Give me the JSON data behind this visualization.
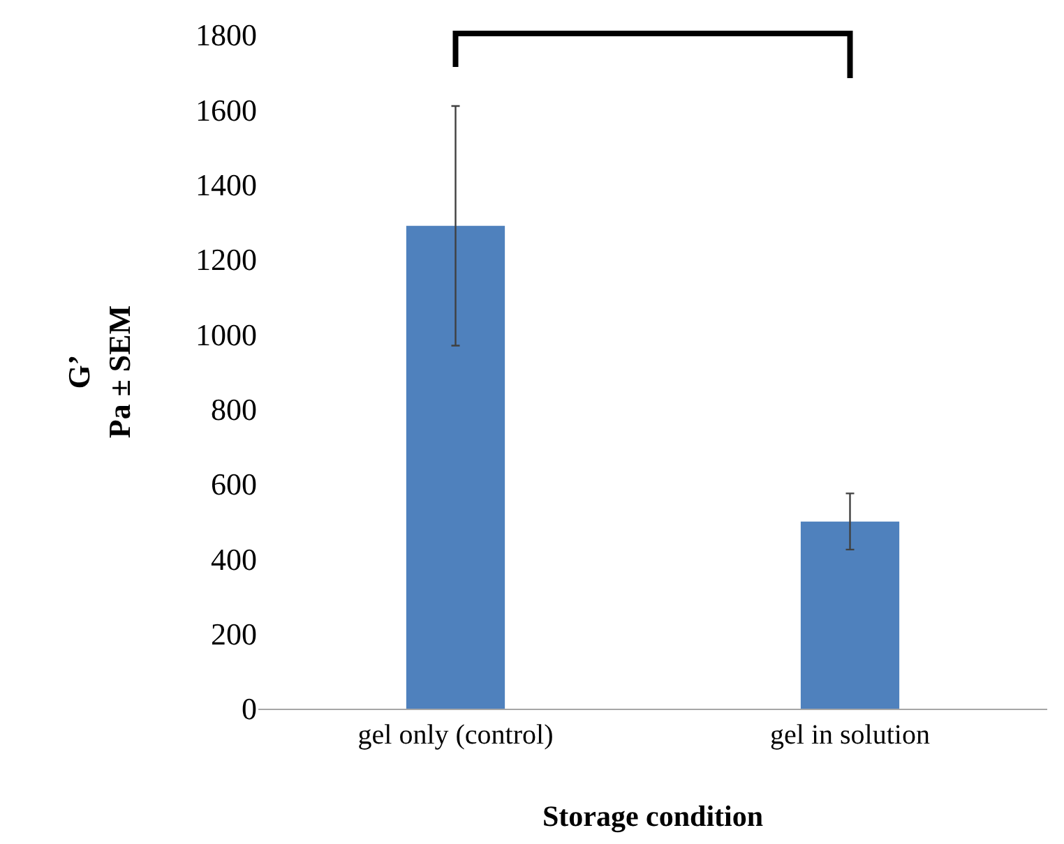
{
  "chart_data": {
    "type": "bar",
    "xlabel": "Storage condition",
    "ylabel": "G’\nPa ± SEM",
    "categories": [
      "gel only (control)",
      "gel in solution"
    ],
    "values": [
      1290,
      500
    ],
    "errors": [
      320,
      75
    ],
    "color": "#4f81bd",
    "ylim": [
      0,
      1800
    ],
    "yticks": [
      0,
      200,
      400,
      600,
      800,
      1000,
      1200,
      1400,
      1600,
      1800
    ],
    "grid": false
  }
}
